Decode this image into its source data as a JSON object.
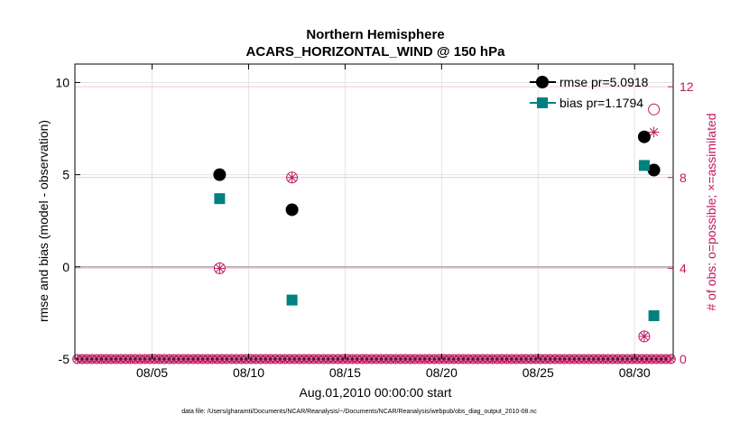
{
  "chart_data": {
    "type": "scatter",
    "title": "Northern Hemisphere",
    "subtitle": "ACARS_HORIZONTAL_WIND @ 150 hPa",
    "xlabel": "Aug.01,2010 00:00:00 start",
    "ylabel": "rmse and bias (model - observation)",
    "y2label": "# of obs: o=possible; ×=assimilated",
    "footnote": "data file: /Users/gharamti/Documents/NCAR/Reanalysis/~/Documents/NCAR/Reanalysis/webpub/obs_diag_output_2010-08.nc",
    "xlim": [
      1.0,
      32.0
    ],
    "ylim": [
      -5,
      11
    ],
    "y2lim": [
      0,
      13
    ],
    "x_ticks": [
      5,
      10,
      15,
      20,
      25,
      30
    ],
    "x_tick_labels": [
      "08/05",
      "08/10",
      "08/15",
      "08/20",
      "08/25",
      "08/30"
    ],
    "y_ticks": [
      -5,
      0,
      5,
      10
    ],
    "y_tick_labels": [
      "-5",
      "0",
      "5",
      "10"
    ],
    "y2_ticks": [
      0,
      4,
      8,
      12
    ],
    "y2_tick_labels": [
      "0",
      "4",
      "8",
      "12"
    ],
    "series": [
      {
        "name": "rmse",
        "legend": "rmse pr=5.0918",
        "color": "#000000",
        "marker": "circle",
        "x": [
          8.5,
          12.25,
          30.5,
          31.0
        ],
        "y": [
          5.0,
          3.1,
          7.05,
          5.25
        ]
      },
      {
        "name": "bias",
        "legend": "bias pr=1.1794",
        "color": "#008080",
        "marker": "square",
        "x": [
          8.5,
          12.25,
          30.5,
          31.0
        ],
        "y": [
          3.7,
          -1.8,
          5.5,
          -2.65
        ]
      },
      {
        "name": "obs_possible",
        "color": "#c0185f",
        "marker": "open-circle",
        "x": [
          8.5,
          12.25,
          30.5,
          31.0
        ],
        "y": [
          4,
          8,
          1,
          11
        ]
      },
      {
        "name": "obs_assimilated",
        "color": "#c0185f",
        "marker": "asterisk",
        "x": [
          8.5,
          12.25,
          30.5,
          31.0
        ],
        "y": [
          4,
          8,
          1,
          10
        ]
      }
    ],
    "zero_baseline_count": 124,
    "zero_line": true,
    "grid": true,
    "legend_position": "top-right"
  }
}
